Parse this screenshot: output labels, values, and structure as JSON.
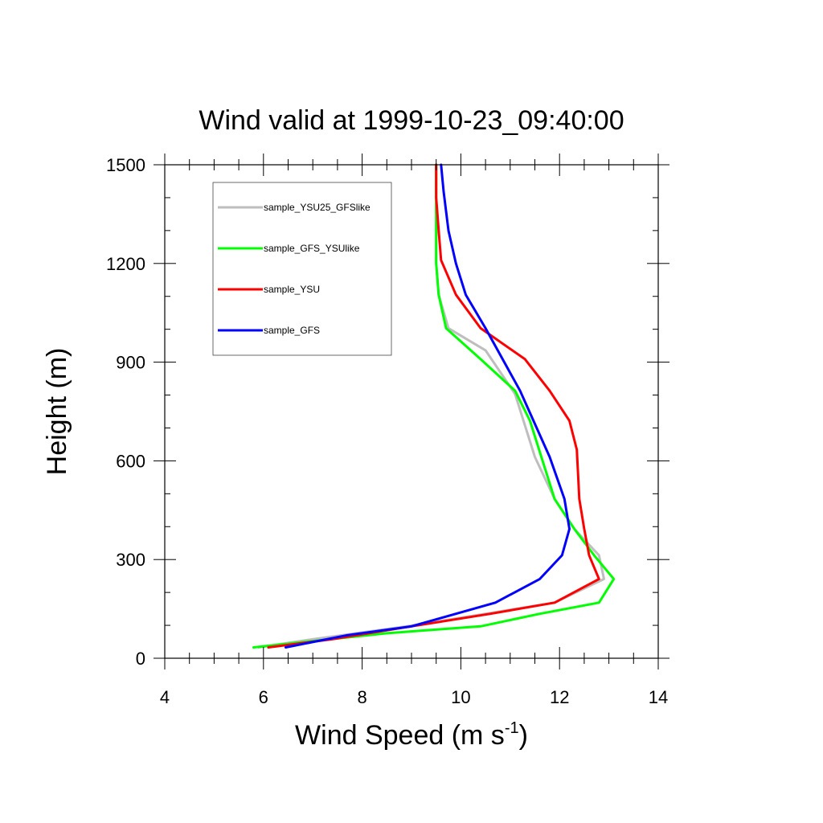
{
  "chart_data": {
    "type": "line",
    "title": "Wind valid at 1999-10-23_09:40:00",
    "xlabel": "Wind Speed (m s",
    "xlabel_sup": "-1",
    "xlabel_end": ")",
    "ylabel": "Height (m)",
    "xlim": [
      4,
      14
    ],
    "ylim": [
      0,
      1500
    ],
    "x_ticks": [
      4,
      6,
      8,
      10,
      12,
      14
    ],
    "y_ticks": [
      0,
      300,
      600,
      900,
      1200,
      1500
    ],
    "x_tick_labels": [
      "4",
      "6",
      "8",
      "10",
      "12",
      "14"
    ],
    "y_tick_labels": [
      "0",
      "300",
      "600",
      "900",
      "1200",
      "1500"
    ],
    "legend_position": "top-left",
    "grid": false,
    "series": [
      {
        "name": "sample_YSU25_GFSlike",
        "color": "#bebebe",
        "points": [
          [
            5.9,
            33
          ],
          [
            7.0,
            58
          ],
          [
            8.9,
            97
          ],
          [
            10.5,
            135
          ],
          [
            11.9,
            169
          ],
          [
            12.9,
            241
          ],
          [
            12.8,
            313
          ],
          [
            12.3,
            393
          ],
          [
            11.9,
            484
          ],
          [
            11.5,
            612
          ],
          [
            11.1,
            803
          ],
          [
            10.5,
            936
          ],
          [
            9.75,
            1003
          ],
          [
            9.55,
            1105
          ],
          [
            9.5,
            1200
          ],
          [
            9.5,
            1300
          ],
          [
            9.5,
            1400
          ],
          [
            9.5,
            1500
          ]
        ]
      },
      {
        "name": "sample_GFS_YSUlike",
        "color": "#00ff00",
        "points": [
          [
            5.8,
            33
          ],
          [
            8.5,
            76
          ],
          [
            10.4,
            97
          ],
          [
            11.6,
            135
          ],
          [
            12.8,
            169
          ],
          [
            13.1,
            241
          ],
          [
            12.7,
            313
          ],
          [
            12.3,
            393
          ],
          [
            11.9,
            484
          ],
          [
            11.4,
            722
          ],
          [
            11.1,
            813
          ],
          [
            10.4,
            909
          ],
          [
            9.7,
            1003
          ],
          [
            9.55,
            1105
          ],
          [
            9.5,
            1200
          ],
          [
            9.5,
            1300
          ],
          [
            9.5,
            1400
          ],
          [
            9.5,
            1500
          ]
        ]
      },
      {
        "name": "sample_YSU",
        "color": "#ff0000",
        "points": [
          [
            6.1,
            33
          ],
          [
            7.4,
            58
          ],
          [
            9.0,
            97
          ],
          [
            10.6,
            135
          ],
          [
            11.9,
            169
          ],
          [
            12.8,
            241
          ],
          [
            12.6,
            313
          ],
          [
            12.5,
            393
          ],
          [
            12.4,
            484
          ],
          [
            12.35,
            634
          ],
          [
            12.2,
            722
          ],
          [
            11.8,
            813
          ],
          [
            11.3,
            909
          ],
          [
            10.4,
            1003
          ],
          [
            9.9,
            1105
          ],
          [
            9.6,
            1210
          ],
          [
            9.55,
            1300
          ],
          [
            9.5,
            1400
          ],
          [
            9.5,
            1500
          ]
        ]
      },
      {
        "name": "sample_GFS",
        "color": "#0000ff",
        "points": [
          [
            6.45,
            33
          ],
          [
            7.7,
            70
          ],
          [
            9.0,
            97
          ],
          [
            10.7,
            169
          ],
          [
            11.6,
            241
          ],
          [
            12.05,
            313
          ],
          [
            12.2,
            393
          ],
          [
            12.1,
            484
          ],
          [
            11.8,
            612
          ],
          [
            11.2,
            813
          ],
          [
            10.5,
            1003
          ],
          [
            10.1,
            1105
          ],
          [
            9.9,
            1200
          ],
          [
            9.75,
            1300
          ],
          [
            9.65,
            1420
          ],
          [
            9.6,
            1500
          ]
        ]
      }
    ]
  }
}
